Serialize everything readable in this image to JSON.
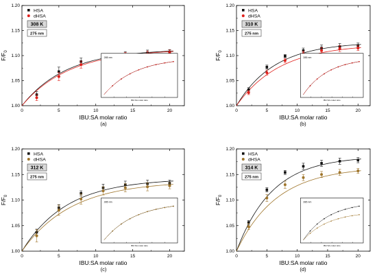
{
  "chart_data": [
    {
      "type": "scatter",
      "panel_label": "(a)",
      "temperature": "308 K",
      "wavelength": "275 nm",
      "xlabel": "IBU:SA molar ratio",
      "ylabel_main": "F/F",
      "ylabel_sub": "0",
      "xlim": [
        0,
        22
      ],
      "ylim": [
        1.0,
        1.2
      ],
      "xticks": [
        0,
        5,
        10,
        15,
        20
      ],
      "yticks": [
        1.0,
        1.05,
        1.1,
        1.15,
        1.2
      ],
      "x": [
        2,
        5,
        8,
        11,
        14,
        17,
        20
      ],
      "series": [
        {
          "name": "HSA",
          "color": "#111111",
          "values": [
            1.022,
            1.068,
            1.088,
            1.097,
            1.102,
            1.105,
            1.107
          ],
          "errors": [
            0.006,
            0.009,
            0.007,
            0.006,
            0.006,
            0.006,
            0.005
          ],
          "fit_amplitude": 1.113,
          "fit_k": 0.165
        },
        {
          "name": "dHSA",
          "color": "#e0201b",
          "values": [
            1.016,
            1.058,
            1.082,
            1.093,
            1.1,
            1.103,
            1.106
          ],
          "errors": [
            0.006,
            0.008,
            0.007,
            0.006,
            0.006,
            0.006,
            0.005
          ],
          "fit_amplitude": 1.113,
          "fit_k": 0.155
        }
      ],
      "inset": {
        "title": "285 nm",
        "xlabel": "IBU:SA molar ratio",
        "series_colors": [
          "#111111",
          "#e0201b"
        ],
        "diverge": 0.0
      }
    },
    {
      "type": "scatter",
      "panel_label": "(b)",
      "temperature": "310 K",
      "wavelength": "275 nm",
      "xlabel": "IBU:SA molar ratio",
      "ylabel_main": "F/F",
      "ylabel_sub": "0",
      "xlim": [
        0,
        22
      ],
      "ylim": [
        1.0,
        1.2
      ],
      "xticks": [
        0,
        5,
        10,
        15,
        20
      ],
      "yticks": [
        1.0,
        1.05,
        1.1,
        1.15,
        1.2
      ],
      "x": [
        2,
        5,
        8,
        11,
        14,
        17,
        20
      ],
      "series": [
        {
          "name": "HSA",
          "color": "#111111",
          "values": [
            1.032,
            1.077,
            1.099,
            1.11,
            1.115,
            1.118,
            1.12
          ],
          "errors": [
            0.004,
            0.004,
            0.003,
            0.005,
            0.006,
            0.006,
            0.005
          ],
          "fit_amplitude": 1.127,
          "fit_k": 0.16
        },
        {
          "name": "dHSA",
          "color": "#e0201b",
          "values": [
            1.026,
            1.066,
            1.09,
            1.104,
            1.11,
            1.114,
            1.115
          ],
          "errors": [
            0.004,
            0.005,
            0.004,
            0.005,
            0.006,
            0.006,
            0.005
          ],
          "fit_amplitude": 1.123,
          "fit_k": 0.14
        }
      ],
      "inset": {
        "title": "285 nm",
        "xlabel": "IBU:SA molar ratio",
        "series_colors": [
          "#111111",
          "#e0201b"
        ],
        "diverge": 0.0
      }
    },
    {
      "type": "scatter",
      "panel_label": "(c)",
      "temperature": "312 K",
      "wavelength": "275 nm",
      "xlabel": "IBU:SA molar ratio",
      "ylabel_main": "F/F",
      "ylabel_sub": "0",
      "xlim": [
        0,
        22
      ],
      "ylim": [
        1.0,
        1.2
      ],
      "xticks": [
        0,
        5,
        10,
        15,
        20
      ],
      "yticks": [
        1.0,
        1.05,
        1.1,
        1.15,
        1.2
      ],
      "x": [
        2,
        5,
        8,
        11,
        14,
        17,
        20
      ],
      "series": [
        {
          "name": "HSA",
          "color": "#111111",
          "values": [
            1.037,
            1.085,
            1.113,
            1.124,
            1.13,
            1.132,
            1.133
          ],
          "errors": [
            0.006,
            0.006,
            0.005,
            0.007,
            0.007,
            0.007,
            0.006
          ],
          "fit_amplitude": 1.142,
          "fit_k": 0.165
        },
        {
          "name": "dHSA",
          "color": "#a0762c",
          "values": [
            1.03,
            1.08,
            1.102,
            1.118,
            1.124,
            1.126,
            1.128
          ],
          "errors": [
            0.012,
            0.01,
            0.01,
            0.008,
            0.008,
            0.008,
            0.006
          ],
          "fit_amplitude": 1.137,
          "fit_k": 0.15
        }
      ],
      "inset": {
        "title": "285 nm",
        "xlabel": "IBU:SA molar ratio",
        "series_colors": [
          "#111111",
          "#a0762c"
        ],
        "diverge": 0.0
      }
    },
    {
      "type": "scatter",
      "panel_label": "(d)",
      "temperature": "314 K",
      "wavelength": "275 nm",
      "xlabel": "IBU:SA molar ratio",
      "ylabel_main": "F/F",
      "ylabel_sub": "0",
      "xlim": [
        0,
        22
      ],
      "ylim": [
        1.0,
        1.2
      ],
      "xticks": [
        0,
        5,
        10,
        15,
        20
      ],
      "yticks": [
        1.0,
        1.05,
        1.1,
        1.15,
        1.2
      ],
      "x": [
        2,
        5,
        8,
        11,
        14,
        17,
        20
      ],
      "series": [
        {
          "name": "HSA",
          "color": "#111111",
          "values": [
            1.056,
            1.12,
            1.154,
            1.166,
            1.172,
            1.176,
            1.178
          ],
          "errors": [
            0.004,
            0.004,
            0.004,
            0.006,
            0.006,
            0.006,
            0.005
          ],
          "fit_amplitude": 1.186,
          "fit_k": 0.17
        },
        {
          "name": "dHSA",
          "color": "#a0762c",
          "values": [
            1.048,
            1.104,
            1.13,
            1.144,
            1.15,
            1.154,
            1.157
          ],
          "errors": [
            0.006,
            0.007,
            0.007,
            0.006,
            0.006,
            0.006,
            0.005
          ],
          "fit_amplitude": 1.165,
          "fit_k": 0.15
        }
      ],
      "inset": {
        "title": "285 nm",
        "xlabel": "IBU:SA molar ratio",
        "series_colors": [
          "#111111",
          "#a0762c"
        ],
        "diverge": 0.25
      }
    }
  ]
}
